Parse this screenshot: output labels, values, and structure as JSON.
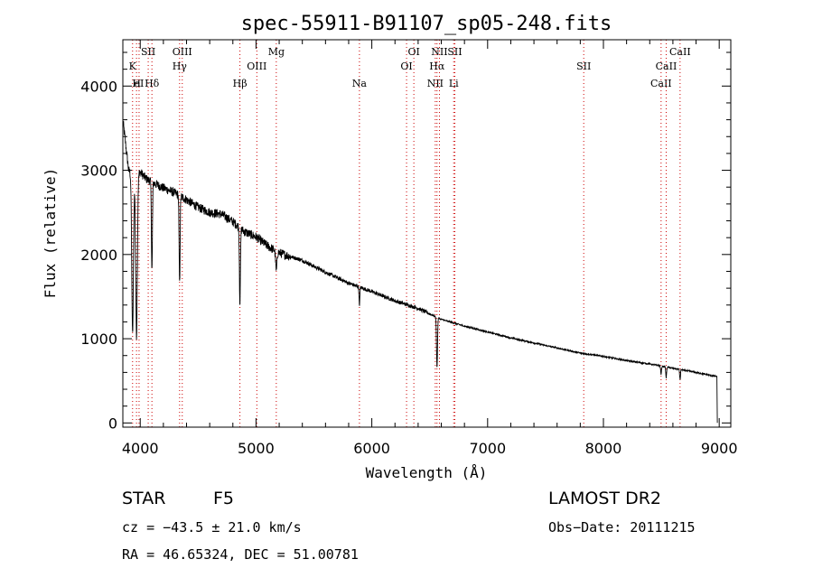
{
  "chart_data": {
    "type": "line",
    "title": "spec-55911-B91107_sp05-248.fits",
    "xlabel": "Wavelength (Å)",
    "ylabel": "Flux (relative)",
    "xlim": [
      3850,
      9100
    ],
    "ylim": [
      -50,
      4550
    ],
    "x_ticks": [
      4000,
      5000,
      6000,
      7000,
      8000,
      9000
    ],
    "y_ticks": [
      0,
      1000,
      2000,
      3000,
      4000
    ],
    "grid": false,
    "continuum": {
      "x": [
        3850,
        3900,
        3950,
        4000,
        4050,
        4100,
        4200,
        4300,
        4400,
        4500,
        4600,
        4700,
        4800,
        4900,
        5000,
        5100,
        5200,
        5400,
        5600,
        5800,
        6000,
        6200,
        6400,
        6600,
        6800,
        7000,
        7200,
        7400,
        7600,
        7800,
        8000,
        8200,
        8400,
        8600,
        8800,
        8980
      ],
      "y": [
        3600,
        3000,
        2920,
        2980,
        2900,
        2860,
        2790,
        2730,
        2650,
        2560,
        2500,
        2480,
        2390,
        2270,
        2210,
        2100,
        2020,
        1930,
        1790,
        1660,
        1560,
        1450,
        1360,
        1230,
        1150,
        1080,
        1010,
        950,
        890,
        830,
        790,
        740,
        700,
        650,
        600,
        550
      ]
    },
    "absorption_features": [
      {
        "x": 3934,
        "depth": 1900,
        "width": 10
      },
      {
        "x": 3968,
        "depth": 1900,
        "width": 10
      },
      {
        "x": 4101,
        "depth": 1050,
        "width": 6
      },
      {
        "x": 4340,
        "depth": 1050,
        "width": 6
      },
      {
        "x": 4861,
        "depth": 900,
        "width": 6
      },
      {
        "x": 5175,
        "depth": 240,
        "width": 8
      },
      {
        "x": 5893,
        "depth": 210,
        "width": 5
      },
      {
        "x": 6563,
        "depth": 600,
        "width": 6
      },
      {
        "x": 8498,
        "depth": 100,
        "width": 5
      },
      {
        "x": 8542,
        "depth": 130,
        "width": 5
      },
      {
        "x": 8662,
        "depth": 120,
        "width": 5
      }
    ],
    "line_markers": [
      {
        "label": "K",
        "x": 3934,
        "row": 1
      },
      {
        "label": "H",
        "x": 3968,
        "row": 2
      },
      {
        "label": "eI",
        "x": 3990,
        "row": 2
      },
      {
        "label": "SII",
        "x": 4069,
        "row": 0
      },
      {
        "label": "Hδ",
        "x": 4101,
        "row": 2
      },
      {
        "label": "OIII",
        "x": 4363,
        "row": 0
      },
      {
        "label": "Hγ",
        "x": 4340,
        "row": 1
      },
      {
        "label": "Hβ",
        "x": 4861,
        "row": 2
      },
      {
        "label": "OIII",
        "x": 5007,
        "row": 1
      },
      {
        "label": "Mg",
        "x": 5175,
        "row": 0
      },
      {
        "label": "Na",
        "x": 5893,
        "row": 2
      },
      {
        "label": "OI",
        "x": 6300,
        "row": 1
      },
      {
        "label": "OI",
        "x": 6363,
        "row": 0
      },
      {
        "label": "NII",
        "x": 6548,
        "row": 2
      },
      {
        "label": "Hα",
        "x": 6563,
        "row": 1
      },
      {
        "label": "NII",
        "x": 6584,
        "row": 0
      },
      {
        "label": "SII",
        "x": 6717,
        "row": 0
      },
      {
        "label": "Li",
        "x": 6707,
        "row": 2
      },
      {
        "label": "SII",
        "x": 7830,
        "row": 1
      },
      {
        "label": "CaII",
        "x": 8498,
        "row": 2
      },
      {
        "label": "CaII",
        "x": 8542,
        "row": 1
      },
      {
        "label": "CaII",
        "x": 8662,
        "row": 0
      }
    ],
    "colors": {
      "spectrum": "#000000",
      "markers": "#cc0000"
    }
  },
  "info": {
    "class": "STAR",
    "subclass": "F5",
    "survey": "LAMOST DR2",
    "cz": "cz = −43.5 ± 21.0 km/s",
    "obs_date": "Obs−Date: 20111215",
    "coords": "RA =  46.65324, DEC =  51.00781"
  }
}
